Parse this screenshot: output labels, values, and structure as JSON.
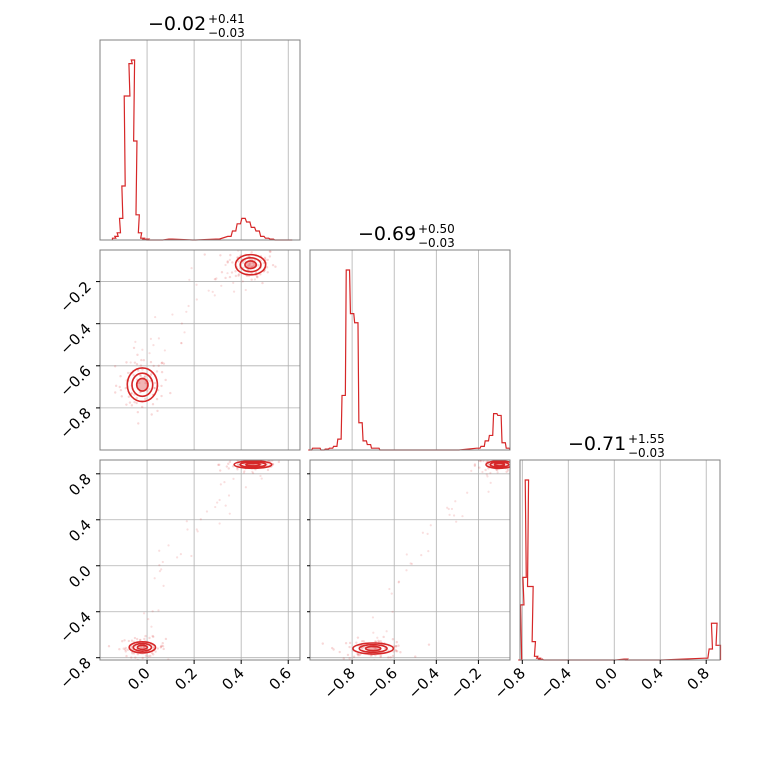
{
  "colors": {
    "line": "#d62728",
    "grid": "#b0b0b0",
    "frame": "#808080"
  },
  "chart_data": {
    "type": "corner",
    "grid": true,
    "variables": [
      {
        "range": [
          -0.2,
          0.65
        ],
        "ticks": [
          0.0,
          0.2,
          0.4,
          0.6
        ],
        "tick_labels": [
          "0.0",
          "0.2",
          "0.4",
          "0.6"
        ]
      },
      {
        "range": [
          -1.0,
          -0.05
        ],
        "ticks": [
          -0.8,
          -0.6,
          -0.4,
          -0.2
        ],
        "tick_labels": [
          "−0.8",
          "−0.6",
          "−0.4",
          "−0.2"
        ]
      },
      {
        "range": [
          -0.82,
          0.92
        ],
        "ticks": [
          -0.8,
          -0.4,
          0.0,
          0.4,
          0.8
        ],
        "tick_labels": [
          "−0.8",
          "−0.4",
          "0.0",
          "0.4",
          "0.8"
        ]
      }
    ],
    "titles": [
      {
        "median": "−0.02",
        "plus": "+0.41",
        "minus": "−0.03"
      },
      {
        "median": "−0.69",
        "plus": "+0.50",
        "minus": "−0.03"
      },
      {
        "median": "−0.71",
        "plus": "+1.55",
        "minus": "−0.03"
      }
    ],
    "histograms": [
      {
        "bin_centers": [
          -0.14,
          -0.13,
          -0.12,
          -0.11,
          -0.1,
          -0.09,
          -0.08,
          -0.07,
          -0.06,
          -0.05,
          -0.04,
          -0.03,
          -0.02,
          -0.01,
          0.0,
          0.01,
          0.02,
          0.03,
          0.04,
          0.05,
          0.06,
          0.1,
          0.2,
          0.3,
          0.35,
          0.37,
          0.39,
          0.41,
          0.43,
          0.45,
          0.47,
          0.49,
          0.51,
          0.53,
          0.55,
          0.57,
          0.59,
          0.61
        ],
        "counts": [
          0.01,
          0.02,
          0.04,
          0.12,
          0.3,
          0.8,
          0.8,
          0.98,
          1.0,
          0.55,
          0.14,
          0.04,
          0.01,
          0.005,
          0.005,
          0,
          0,
          0,
          0,
          0,
          0,
          0.005,
          0,
          0.005,
          0.02,
          0.05,
          0.09,
          0.12,
          0.1,
          0.07,
          0.05,
          0.02,
          0.01,
          0.005,
          0,
          0,
          0,
          0
        ]
      },
      {
        "bin_centers": [
          -1.0,
          -0.98,
          -0.96,
          -0.94,
          -0.92,
          -0.9,
          -0.88,
          -0.86,
          -0.84,
          -0.82,
          -0.8,
          -0.78,
          -0.76,
          -0.74,
          -0.72,
          -0.7,
          -0.68,
          -0.66,
          -0.64,
          -0.62,
          -0.6,
          -0.58,
          -0.56,
          -0.5,
          -0.4,
          -0.3,
          -0.2,
          -0.18,
          -0.16,
          -0.14,
          -0.12,
          -0.1,
          -0.08,
          -0.06
        ],
        "counts": [
          0,
          0.01,
          0.01,
          0,
          0.005,
          0.01,
          0.02,
          0.06,
          0.3,
          0.99,
          0.75,
          0.7,
          0.15,
          0.05,
          0.03,
          0.01,
          0.01,
          0,
          0,
          0,
          0,
          0,
          0,
          0,
          0,
          0,
          0.01,
          0.02,
          0.05,
          0.08,
          0.2,
          0.19,
          0.04,
          0.01
        ],
        "note": ""
      },
      {
        "bin_centers": [
          -0.82,
          -0.8,
          -0.78,
          -0.76,
          -0.74,
          -0.72,
          -0.7,
          -0.68,
          -0.66,
          -0.64,
          -0.6,
          -0.4,
          0.0,
          0.1,
          0.12,
          0.4,
          0.8,
          0.84,
          0.86,
          0.88,
          0.9,
          0.91
        ],
        "counts": [
          0,
          0.3,
          0.45,
          0.98,
          0.4,
          0.4,
          0.1,
          0.02,
          0.01,
          0.005,
          0,
          0,
          0,
          0.005,
          0,
          0,
          0.01,
          0.06,
          0.2,
          0.2,
          0.08,
          0.08
        ]
      }
    ],
    "scatter_panels": [
      {
        "x_var": 0,
        "y_var": 1,
        "clusters": [
          {
            "center": [
              -0.02,
              -0.69
            ],
            "spread": [
              0.04,
              0.05
            ]
          },
          {
            "center": [
              0.44,
              -0.12
            ],
            "spread": [
              0.04,
              0.03
            ]
          }
        ]
      },
      {
        "x_var": 0,
        "y_var": 2,
        "clusters": [
          {
            "center": [
              -0.02,
              -0.71
            ],
            "spread": [
              0.035,
              0.03
            ]
          },
          {
            "center": [
              0.45,
              0.88
            ],
            "spread": [
              0.05,
              0.02
            ]
          }
        ]
      },
      {
        "x_var": 1,
        "y_var": 2,
        "clusters": [
          {
            "center": [
              -0.7,
              -0.72
            ],
            "spread": [
              0.06,
              0.03
            ]
          },
          {
            "center": [
              -0.1,
              0.88
            ],
            "spread": [
              0.04,
              0.02
            ]
          }
        ]
      }
    ]
  }
}
